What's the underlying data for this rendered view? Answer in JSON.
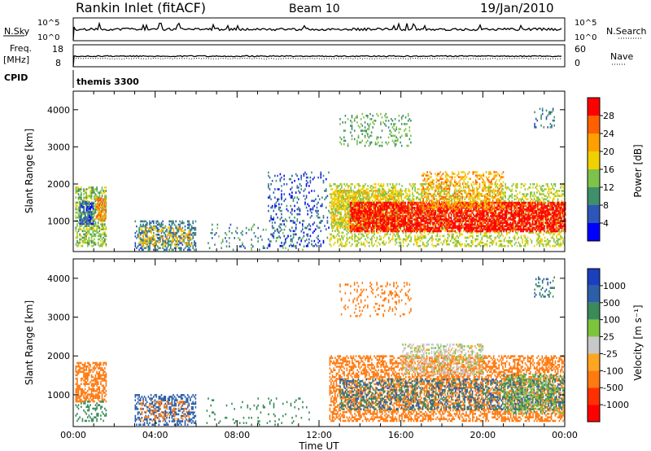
{
  "header": {
    "station": "Rankin Inlet (fitACF)",
    "beam": "Beam 10",
    "date": "19/Jan/2010"
  },
  "params_panel": {
    "nsky_label": "N.Sky",
    "nsearch_label": "N.Search",
    "nsky_ticks": [
      "10^5",
      "10^0"
    ],
    "nsearch_ticks": [
      "10^5",
      "10^0"
    ],
    "freq_label": "Freq.",
    "freq_unit": "[MHz]",
    "freq_ticks": [
      "18",
      "8"
    ],
    "nave_label": "Nave",
    "nave_ticks": [
      "60",
      "0"
    ],
    "cpid_label": "CPID",
    "cpid_value": "themis 3300"
  },
  "colors": {
    "power_scale": [
      "#0000ff",
      "#2c56b8",
      "#3f8f6a",
      "#7dc24a",
      "#f0d000",
      "#ffa000",
      "#ff6000",
      "#ff0000"
    ],
    "velocity_scale": [
      "#1a3fbf",
      "#2c5fa8",
      "#3a8a5a",
      "#7cc43c",
      "#c8c8c8",
      "#ffa520",
      "#ff7a10",
      "#ff3000",
      "#ff0000"
    ]
  },
  "chart_data": [
    {
      "type": "heatmap",
      "name": "power",
      "xlabel": "",
      "ylabel": "Slant Range [km]",
      "x_range_hours": [
        0,
        24
      ],
      "ylim": [
        180,
        4500
      ],
      "yticks": [
        1000,
        2000,
        3000,
        4000
      ],
      "colorbar": {
        "label": "Power [dB]",
        "ticks": [
          4,
          8,
          12,
          16,
          20,
          24,
          28
        ],
        "range": [
          0,
          31
        ]
      },
      "regions": [
        {
          "t0": 0.1,
          "t1": 1.6,
          "r0": 300,
          "r1": 1900,
          "v": 14,
          "d": 0.55
        },
        {
          "t0": 0.3,
          "t1": 1.0,
          "r0": 900,
          "r1": 1500,
          "v": 6,
          "d": 0.7
        },
        {
          "t0": 1.1,
          "t1": 1.6,
          "r0": 1000,
          "r1": 1600,
          "v": 24,
          "d": 0.6
        },
        {
          "t0": 3.0,
          "t1": 6.0,
          "r0": 200,
          "r1": 1000,
          "v": 8,
          "d": 0.45
        },
        {
          "t0": 3.2,
          "t1": 5.8,
          "r0": 300,
          "r1": 800,
          "v": 20,
          "d": 0.25
        },
        {
          "t0": 6.5,
          "t1": 11.5,
          "r0": 200,
          "r1": 900,
          "v": 10,
          "d": 0.08
        },
        {
          "t0": 9.5,
          "t1": 12.5,
          "r0": 300,
          "r1": 2300,
          "v": 6,
          "d": 0.15
        },
        {
          "t0": 12.5,
          "t1": 24.0,
          "r0": 300,
          "r1": 2000,
          "v": 16,
          "d": 0.35
        },
        {
          "t0": 12.6,
          "t1": 16.0,
          "r0": 800,
          "r1": 1800,
          "v": 18,
          "d": 0.6
        },
        {
          "t0": 13.5,
          "t1": 24.0,
          "r0": 700,
          "r1": 1500,
          "v": 30,
          "d": 0.75
        },
        {
          "t0": 17.0,
          "t1": 21.0,
          "r0": 1300,
          "r1": 2300,
          "v": 22,
          "d": 0.35
        },
        {
          "t0": 13.0,
          "t1": 16.5,
          "r0": 3000,
          "r1": 3900,
          "v": 12,
          "d": 0.15
        },
        {
          "t0": 22.5,
          "t1": 23.5,
          "r0": 3500,
          "r1": 4000,
          "v": 8,
          "d": 0.2
        }
      ]
    },
    {
      "type": "heatmap",
      "name": "velocity",
      "xlabel": "Time UT",
      "ylabel": "Slant Range [km]",
      "x_range_hours": [
        0,
        24
      ],
      "xticks": [
        "00:00",
        "04:00",
        "08:00",
        "12:00",
        "16:00",
        "20:00",
        "00:00"
      ],
      "ylim": [
        180,
        4500
      ],
      "yticks": [
        1000,
        2000,
        3000,
        4000
      ],
      "colorbar": {
        "label": "Velocity [m s⁻¹]",
        "ticks": [
          1000,
          500,
          100,
          25,
          -25,
          -100,
          -500,
          -1000
        ]
      },
      "regions": [
        {
          "t0": 0.1,
          "t1": 1.6,
          "r0": 800,
          "r1": 1800,
          "v": -100,
          "d": 0.55
        },
        {
          "t0": 0.1,
          "t1": 1.6,
          "r0": 300,
          "r1": 800,
          "v": 100,
          "d": 0.3
        },
        {
          "t0": 3.0,
          "t1": 6.0,
          "r0": 200,
          "r1": 1000,
          "v": 400,
          "d": 0.4
        },
        {
          "t0": 3.2,
          "t1": 5.8,
          "r0": 300,
          "r1": 800,
          "v": -100,
          "d": 0.2
        },
        {
          "t0": 6.5,
          "t1": 11.5,
          "r0": 200,
          "r1": 900,
          "v": 100,
          "d": 0.07
        },
        {
          "t0": 12.5,
          "t1": 24.0,
          "r0": 300,
          "r1": 2000,
          "v": -200,
          "d": 0.5
        },
        {
          "t0": 13.0,
          "t1": 24.0,
          "r0": 600,
          "r1": 1400,
          "v": 300,
          "d": 0.35
        },
        {
          "t0": 16.0,
          "t1": 20.0,
          "r0": 1500,
          "r1": 2300,
          "v": 0,
          "d": 0.4
        },
        {
          "t0": 21.0,
          "t1": 24.0,
          "r0": 500,
          "r1": 1500,
          "v": 50,
          "d": 0.35
        },
        {
          "t0": 13.0,
          "t1": 16.5,
          "r0": 3000,
          "r1": 3900,
          "v": -100,
          "d": 0.15
        },
        {
          "t0": 22.5,
          "t1": 23.5,
          "r0": 3500,
          "r1": 4000,
          "v": 300,
          "d": 0.2
        }
      ]
    }
  ]
}
